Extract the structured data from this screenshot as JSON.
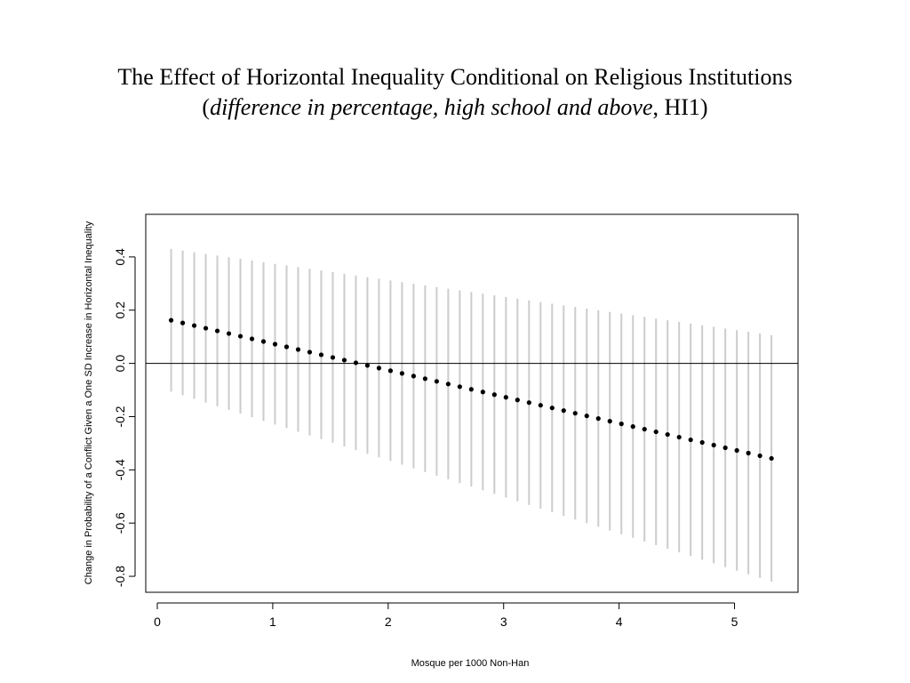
{
  "title": {
    "line1": "The Effect of Horizontal Inequality Conditional on Religious Institutions",
    "line2_open": "(",
    "line2_italic": "difference in percentage, high school and above",
    "line2_rest": ", HI1)"
  },
  "chart_data": {
    "type": "scatter",
    "xlabel": "Mosque per 1000 Non-Han",
    "ylabel": "Change in Probability of a Conflict Given a One SD Increase in Horizontal Inequality",
    "xlim": [
      -0.1,
      5.55
    ],
    "ylim": [
      -0.86,
      0.56
    ],
    "xticks": [
      0,
      1,
      2,
      3,
      4,
      5
    ],
    "yticks": [
      -0.8,
      -0.6,
      -0.4,
      -0.2,
      0.0,
      0.2,
      0.4
    ],
    "ytick_labels": [
      "-0.8",
      "-0.6",
      "-0.4",
      "-0.2",
      "0.0",
      "0.2",
      "0.4"
    ],
    "reference_line_y": 0,
    "grid": false,
    "x_start": 0.12,
    "x_end": 5.32,
    "n_points": 53,
    "point_start": 0.162,
    "point_end": -0.357,
    "ci_upper_start": 0.43,
    "ci_lower_end": -0.82,
    "colors": {
      "point": "#000000",
      "ci": "#cccccc",
      "axis": "#000000"
    }
  }
}
